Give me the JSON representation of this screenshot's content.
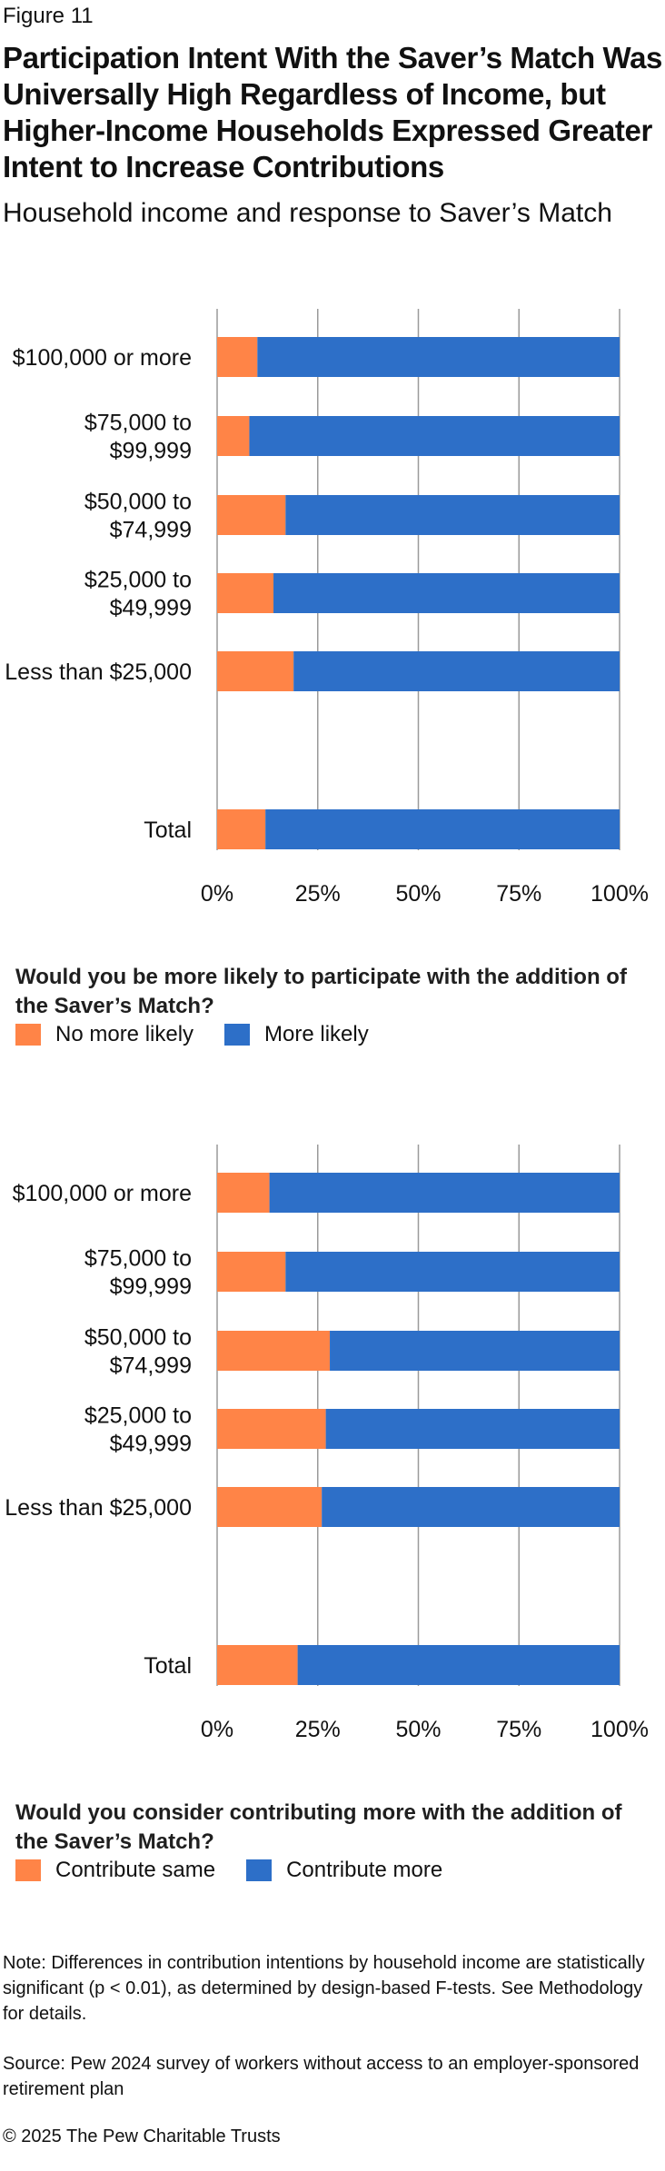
{
  "figure_label": "Figure 11",
  "title": "Participation Intent With the Saver’s Match Was Universally High Regardless of Income, but Higher-Income Households Expressed Greater Intent to Increase Contributions",
  "subtitle": "Household income and response to Saver’s Match",
  "colors": {
    "orange": "#FF8447",
    "blue": "#2D6FC8",
    "grid": "#9a9a9a"
  },
  "charts": [
    {
      "question": "Would you be more likely to participate with the addition of the Saver’s Match?",
      "legend": [
        "No more likely",
        "More likely"
      ]
    },
    {
      "question": "Would you consider contributing more with the addition of the Saver’s Match?",
      "legend": [
        "Contribute same",
        "Contribute more"
      ]
    }
  ],
  "chart_data": [
    {
      "type": "bar",
      "orientation": "horizontal",
      "stacked": true,
      "categories": [
        [
          "$100,000 or more"
        ],
        [
          "$75,000 to",
          "$99,999"
        ],
        [
          "$50,000 to",
          "$74,999"
        ],
        [
          "$25,000 to",
          "$49,999"
        ],
        [
          "Less than $25,000"
        ],
        [
          "Total"
        ]
      ],
      "series": [
        {
          "name": "No more likely",
          "color": "#FF8447",
          "values": [
            10,
            8,
            17,
            14,
            19,
            12
          ]
        },
        {
          "name": "More likely",
          "color": "#2D6FC8",
          "values": [
            90,
            92,
            83,
            86,
            81,
            88
          ]
        }
      ],
      "x_ticks": [
        "0%",
        "25%",
        "50%",
        "75%",
        "100%"
      ],
      "xlim": [
        0,
        100
      ],
      "grid": true
    },
    {
      "type": "bar",
      "orientation": "horizontal",
      "stacked": true,
      "categories": [
        [
          "$100,000 or more"
        ],
        [
          "$75,000 to",
          "$99,999"
        ],
        [
          "$50,000 to",
          "$74,999"
        ],
        [
          "$25,000 to",
          "$49,999"
        ],
        [
          "Less than $25,000"
        ],
        [
          "Total"
        ]
      ],
      "series": [
        {
          "name": "Contribute same",
          "color": "#FF8447",
          "values": [
            13,
            17,
            28,
            27,
            26,
            20
          ]
        },
        {
          "name": "Contribute more",
          "color": "#2D6FC8",
          "values": [
            87,
            83,
            72,
            73,
            74,
            80
          ]
        }
      ],
      "x_ticks": [
        "0%",
        "25%",
        "50%",
        "75%",
        "100%"
      ],
      "xlim": [
        0,
        100
      ],
      "grid": true
    }
  ],
  "note": "Note: Differences in contribution intentions by household income are statistically significant (p < 0.01), as determined by design-based F-tests. See Methodology for details.",
  "source": "Source: Pew 2024 survey of workers without access to an employer-sponsored retirement plan",
  "copyright": "© 2025 The Pew Charitable Trusts"
}
